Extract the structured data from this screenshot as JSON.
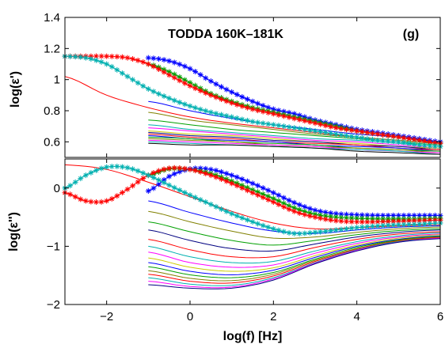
{
  "chart_data": [
    {
      "type": "line",
      "panel": "top",
      "title": "TODDA 160K–181K",
      "panel_tag": "(g)",
      "xlabel": "",
      "ylabel": "log(ε')",
      "xlim": [
        -3,
        6
      ],
      "ylim": [
        0.5,
        1.4
      ],
      "yticks": [
        0.6,
        0.8,
        1,
        1.2,
        1.4
      ],
      "ytick_labels": [
        "0.6",
        "0.8",
        "1",
        "1.2",
        "1.4"
      ],
      "grid": false,
      "marked_series": [
        {
          "color": "#0000ff",
          "x": [
            -1.0,
            -0.5,
            0.0,
            0.5,
            1.0,
            1.5,
            2.0,
            2.5,
            3.0,
            3.5,
            4.0,
            4.5,
            5.0,
            5.5,
            6.0
          ],
          "y": [
            1.14,
            1.12,
            1.07,
            0.99,
            0.92,
            0.86,
            0.81,
            0.78,
            0.74,
            0.71,
            0.68,
            0.66,
            0.64,
            0.62,
            0.6
          ]
        },
        {
          "color": "#00a000",
          "x": [
            -1.0,
            -0.5,
            0.0,
            0.5,
            1.0,
            1.5,
            2.0,
            2.5,
            3.0,
            3.5,
            4.0,
            4.5,
            5.0,
            5.5,
            6.0
          ],
          "y": [
            1.1,
            1.05,
            0.98,
            0.91,
            0.86,
            0.82,
            0.79,
            0.76,
            0.73,
            0.7,
            0.67,
            0.65,
            0.63,
            0.61,
            0.59
          ]
        },
        {
          "color": "#ff0000",
          "x": [
            -3.0,
            -2.5,
            -2.0,
            -1.5,
            -1.0,
            -0.5,
            0.0,
            0.5,
            1.0,
            1.5,
            2.0,
            2.5,
            3.0,
            3.5,
            4.0,
            4.5,
            5.0,
            5.5,
            6.0
          ],
          "y": [
            1.15,
            1.15,
            1.15,
            1.14,
            1.1,
            1.03,
            0.96,
            0.9,
            0.85,
            0.81,
            0.78,
            0.75,
            0.72,
            0.69,
            0.67,
            0.65,
            0.63,
            0.61,
            0.59
          ]
        },
        {
          "color": "#00b0b0",
          "x": [
            -3.0,
            -2.5,
            -2.0,
            -1.5,
            -1.0,
            -0.5,
            0.0,
            0.5,
            1.0,
            1.5,
            2.0,
            2.5,
            3.0,
            3.5,
            4.0,
            4.5,
            5.0,
            5.5,
            6.0
          ],
          "y": [
            1.15,
            1.14,
            1.1,
            1.02,
            0.94,
            0.88,
            0.83,
            0.79,
            0.76,
            0.73,
            0.71,
            0.69,
            0.67,
            0.65,
            0.63,
            0.61,
            0.6,
            0.58,
            0.57
          ]
        }
      ],
      "line_series": [
        {
          "color": "#ff0000",
          "x": [
            -3.0,
            -2.0,
            -1.0,
            0.0,
            1.0,
            2.0,
            3.0,
            4.0,
            5.0,
            6.0
          ],
          "y": [
            1.02,
            0.9,
            0.82,
            0.76,
            0.72,
            0.69,
            0.66,
            0.63,
            0.61,
            0.59
          ]
        },
        {
          "color": "#0000ff",
          "x": [
            -1.0,
            0.0,
            1.0,
            2.0,
            3.0,
            4.0,
            5.0,
            6.0
          ],
          "y": [
            0.86,
            0.8,
            0.75,
            0.71,
            0.68,
            0.65,
            0.63,
            0.6
          ]
        },
        {
          "color": "#808000",
          "x": [
            -1.0,
            0.0,
            1.0,
            2.0,
            3.0,
            4.0,
            5.0,
            6.0
          ],
          "y": [
            0.79,
            0.74,
            0.71,
            0.68,
            0.65,
            0.63,
            0.61,
            0.59
          ]
        },
        {
          "color": "#00a000",
          "x": [
            -1.0,
            0.0,
            1.0,
            2.0,
            3.0,
            4.0,
            5.0,
            6.0
          ],
          "y": [
            0.74,
            0.71,
            0.68,
            0.66,
            0.64,
            0.62,
            0.6,
            0.58
          ]
        },
        {
          "color": "#00b0b0",
          "x": [
            -1.0,
            0.0,
            1.0,
            2.0,
            3.0,
            4.0,
            5.0,
            6.0
          ],
          "y": [
            0.71,
            0.68,
            0.66,
            0.64,
            0.62,
            0.61,
            0.59,
            0.57
          ]
        },
        {
          "color": "#ff00ff",
          "x": [
            -1.0,
            0.0,
            1.0,
            2.0,
            3.0,
            4.0,
            5.0,
            6.0
          ],
          "y": [
            0.69,
            0.67,
            0.65,
            0.63,
            0.61,
            0.6,
            0.58,
            0.56
          ]
        },
        {
          "color": "#cccc00",
          "x": [
            -1.0,
            0.0,
            1.0,
            2.0,
            3.0,
            4.0,
            5.0,
            6.0
          ],
          "y": [
            0.67,
            0.65,
            0.64,
            0.62,
            0.6,
            0.59,
            0.57,
            0.56
          ]
        },
        {
          "color": "#000080",
          "x": [
            -1.0,
            0.0,
            1.0,
            2.0,
            3.0,
            4.0,
            5.0,
            6.0
          ],
          "y": [
            0.66,
            0.64,
            0.63,
            0.61,
            0.6,
            0.58,
            0.57,
            0.55
          ]
        },
        {
          "color": "#ff0000",
          "x": [
            -1.0,
            0.0,
            1.0,
            2.0,
            3.0,
            4.0,
            5.0,
            6.0
          ],
          "y": [
            0.65,
            0.63,
            0.62,
            0.6,
            0.59,
            0.58,
            0.56,
            0.55
          ]
        },
        {
          "color": "#0000ff",
          "x": [
            -1.0,
            0.0,
            1.0,
            2.0,
            3.0,
            4.0,
            5.0,
            6.0
          ],
          "y": [
            0.64,
            0.62,
            0.61,
            0.6,
            0.58,
            0.57,
            0.56,
            0.54
          ]
        },
        {
          "color": "#00a000",
          "x": [
            -1.0,
            0.0,
            1.0,
            2.0,
            3.0,
            4.0,
            5.0,
            6.0
          ],
          "y": [
            0.63,
            0.62,
            0.6,
            0.59,
            0.58,
            0.56,
            0.55,
            0.54
          ]
        },
        {
          "color": "#808000",
          "x": [
            -1.0,
            0.0,
            1.0,
            2.0,
            3.0,
            4.0,
            5.0,
            6.0
          ],
          "y": [
            0.62,
            0.61,
            0.6,
            0.58,
            0.57,
            0.56,
            0.55,
            0.53
          ]
        },
        {
          "color": "#ff00ff",
          "x": [
            -1.0,
            0.0,
            1.0,
            2.0,
            3.0,
            4.0,
            5.0,
            6.0
          ],
          "y": [
            0.61,
            0.6,
            0.59,
            0.58,
            0.57,
            0.55,
            0.54,
            0.53
          ]
        },
        {
          "color": "#00b0b0",
          "x": [
            -1.0,
            0.0,
            1.0,
            2.0,
            3.0,
            4.0,
            5.0,
            6.0
          ],
          "y": [
            0.6,
            0.59,
            0.58,
            0.57,
            0.56,
            0.55,
            0.54,
            0.52
          ]
        },
        {
          "color": "#000000",
          "x": [
            -1.0,
            0.0,
            1.0,
            2.0,
            3.0,
            4.0,
            5.0,
            6.0
          ],
          "y": [
            0.59,
            0.58,
            0.58,
            0.57,
            0.56,
            0.54,
            0.53,
            0.52
          ]
        }
      ]
    },
    {
      "type": "line",
      "panel": "bottom",
      "xlabel": "log(f) [Hz]",
      "ylabel": "log(ε'')",
      "xlim": [
        -3,
        6
      ],
      "ylim": [
        -2,
        0.5
      ],
      "xticks": [
        -2,
        0,
        2,
        4,
        6
      ],
      "xtick_labels": [
        "−2",
        "0",
        "2",
        "4",
        "6"
      ],
      "yticks": [
        -2,
        -1,
        0
      ],
      "ytick_labels": [
        "−2",
        "−1",
        "0"
      ],
      "grid": false,
      "marked_series": [
        {
          "color": "#0000ff",
          "x": [
            -1.0,
            -0.5,
            0.0,
            0.5,
            1.0,
            1.5,
            2.0,
            2.5,
            3.0,
            3.5,
            4.0,
            4.5,
            5.0,
            5.5,
            6.0
          ],
          "y": [
            -0.05,
            0.2,
            0.33,
            0.32,
            0.22,
            0.08,
            -0.08,
            -0.25,
            -0.38,
            -0.44,
            -0.46,
            -0.47,
            -0.47,
            -0.47,
            -0.47
          ]
        },
        {
          "color": "#00a000",
          "x": [
            -1.0,
            -0.5,
            0.0,
            0.5,
            1.0,
            1.5,
            2.0,
            2.5,
            3.0,
            3.5,
            4.0,
            4.5,
            5.0,
            5.5,
            6.0
          ],
          "y": [
            0.22,
            0.33,
            0.32,
            0.25,
            0.12,
            -0.03,
            -0.18,
            -0.34,
            -0.45,
            -0.5,
            -0.52,
            -0.53,
            -0.53,
            -0.53,
            -0.52
          ]
        },
        {
          "color": "#ff0000",
          "x": [
            -3.0,
            -2.5,
            -2.0,
            -1.5,
            -1.0,
            -0.5,
            0.0,
            0.5,
            1.0,
            1.5,
            2.0,
            2.5,
            3.0,
            3.5,
            4.0,
            4.5,
            5.0,
            5.5,
            6.0
          ],
          "y": [
            -0.08,
            -0.22,
            -0.22,
            -0.02,
            0.22,
            0.34,
            0.32,
            0.22,
            0.08,
            -0.08,
            -0.24,
            -0.4,
            -0.5,
            -0.56,
            -0.58,
            -0.58,
            -0.57,
            -0.56,
            -0.55
          ]
        },
        {
          "color": "#00b0b0",
          "x": [
            -3.0,
            -2.5,
            -2.0,
            -1.5,
            -1.0,
            -0.5,
            0.0,
            0.5,
            1.0,
            1.5,
            2.0,
            2.5,
            3.0,
            3.5,
            4.0,
            4.5,
            5.0,
            5.5,
            6.0
          ],
          "y": [
            0.0,
            0.22,
            0.36,
            0.35,
            0.22,
            0.05,
            -0.12,
            -0.28,
            -0.44,
            -0.58,
            -0.7,
            -0.78,
            -0.76,
            -0.72,
            -0.68,
            -0.65,
            -0.63,
            -0.62,
            -0.6
          ]
        }
      ],
      "line_series": [
        {
          "color": "#ff0000",
          "x": [
            -3.0,
            -2.0,
            -1.0,
            0.0,
            1.0,
            2.0,
            3.0,
            4.0,
            5.0,
            6.0
          ],
          "y": [
            0.4,
            0.32,
            0.1,
            -0.15,
            -0.4,
            -0.6,
            -0.7,
            -0.68,
            -0.65,
            -0.63
          ]
        },
        {
          "color": "#0000ff",
          "x": [
            -1.0,
            0.0,
            1.0,
            2.0,
            3.0,
            4.0,
            5.0,
            6.0
          ],
          "y": [
            -0.22,
            -0.42,
            -0.6,
            -0.74,
            -0.78,
            -0.72,
            -0.67,
            -0.65
          ]
        },
        {
          "color": "#808000",
          "x": [
            -1.0,
            0.0,
            1.0,
            2.0,
            3.0,
            4.0,
            5.0,
            6.0
          ],
          "y": [
            -0.4,
            -0.58,
            -0.74,
            -0.86,
            -0.84,
            -0.76,
            -0.7,
            -0.67
          ]
        },
        {
          "color": "#00a000",
          "x": [
            -1.0,
            0.0,
            1.0,
            2.0,
            3.0,
            4.0,
            5.0,
            6.0
          ],
          "y": [
            -0.58,
            -0.75,
            -0.9,
            -0.98,
            -0.9,
            -0.8,
            -0.73,
            -0.7
          ]
        },
        {
          "color": "#000080",
          "x": [
            -1.0,
            0.0,
            1.0,
            2.0,
            3.0,
            4.0,
            5.0,
            6.0
          ],
          "y": [
            -0.72,
            -0.9,
            -1.04,
            -1.08,
            -0.96,
            -0.84,
            -0.76,
            -0.72
          ]
        },
        {
          "color": "#ff0000",
          "x": [
            -1.0,
            0.0,
            1.0,
            2.0,
            3.0,
            4.0,
            5.0,
            6.0
          ],
          "y": [
            -0.88,
            -1.06,
            -1.18,
            -1.18,
            -1.02,
            -0.88,
            -0.79,
            -0.75
          ]
        },
        {
          "color": "#00b0b0",
          "x": [
            -1.0,
            0.0,
            1.0,
            2.0,
            3.0,
            4.0,
            5.0,
            6.0
          ],
          "y": [
            -1.0,
            -1.18,
            -1.28,
            -1.26,
            -1.08,
            -0.92,
            -0.82,
            -0.77
          ]
        },
        {
          "color": "#ff00ff",
          "x": [
            -1.0,
            0.0,
            1.0,
            2.0,
            3.0,
            4.0,
            5.0,
            6.0
          ],
          "y": [
            -1.1,
            -1.28,
            -1.36,
            -1.32,
            -1.12,
            -0.95,
            -0.84,
            -0.79
          ]
        },
        {
          "color": "#cccc00",
          "x": [
            -1.0,
            0.0,
            1.0,
            2.0,
            3.0,
            4.0,
            5.0,
            6.0
          ],
          "y": [
            -1.2,
            -1.36,
            -1.43,
            -1.37,
            -1.16,
            -0.98,
            -0.86,
            -0.8
          ]
        },
        {
          "color": "#0000ff",
          "x": [
            -1.0,
            0.0,
            1.0,
            2.0,
            3.0,
            4.0,
            5.0,
            6.0
          ],
          "y": [
            -1.28,
            -1.43,
            -1.49,
            -1.41,
            -1.19,
            -1.0,
            -0.88,
            -0.82
          ]
        },
        {
          "color": "#00a000",
          "x": [
            -1.0,
            0.0,
            1.0,
            2.0,
            3.0,
            4.0,
            5.0,
            6.0
          ],
          "y": [
            -1.35,
            -1.49,
            -1.54,
            -1.45,
            -1.22,
            -1.02,
            -0.89,
            -0.83
          ]
        },
        {
          "color": "#808000",
          "x": [
            -1.0,
            0.0,
            1.0,
            2.0,
            3.0,
            4.0,
            5.0,
            6.0
          ],
          "y": [
            -1.42,
            -1.55,
            -1.59,
            -1.48,
            -1.24,
            -1.04,
            -0.9,
            -0.84
          ]
        },
        {
          "color": "#ff0000",
          "x": [
            -1.0,
            0.0,
            1.0,
            2.0,
            3.0,
            4.0,
            5.0,
            6.0
          ],
          "y": [
            -1.48,
            -1.6,
            -1.63,
            -1.51,
            -1.26,
            -1.05,
            -0.91,
            -0.85
          ]
        },
        {
          "color": "#00b0b0",
          "x": [
            -1.0,
            0.0,
            1.0,
            2.0,
            3.0,
            4.0,
            5.0,
            6.0
          ],
          "y": [
            -1.54,
            -1.65,
            -1.67,
            -1.54,
            -1.28,
            -1.06,
            -0.92,
            -0.86
          ]
        },
        {
          "color": "#ff00ff",
          "x": [
            -1.0,
            0.0,
            1.0,
            2.0,
            3.0,
            4.0,
            5.0,
            6.0
          ],
          "y": [
            -1.6,
            -1.69,
            -1.7,
            -1.56,
            -1.29,
            -1.07,
            -0.93,
            -0.86
          ]
        },
        {
          "color": "#000080",
          "x": [
            -1.0,
            0.0,
            1.0,
            2.0,
            3.0,
            4.0,
            5.0,
            6.0
          ],
          "y": [
            -1.66,
            -1.72,
            -1.72,
            -1.58,
            -1.3,
            -1.08,
            -0.93,
            -0.87
          ]
        }
      ]
    }
  ]
}
